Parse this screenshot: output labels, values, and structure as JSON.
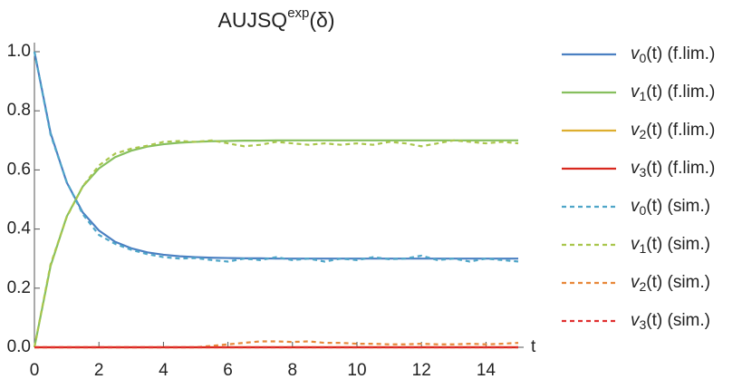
{
  "chart_data": {
    "type": "line",
    "title": [
      "AUJSQ",
      "exp",
      "(δ)"
    ],
    "x_label": "t",
    "x": [
      0,
      0.5,
      1,
      1.5,
      2,
      2.5,
      3,
      3.5,
      4,
      4.5,
      5,
      5.5,
      6,
      6.5,
      7,
      7.5,
      8,
      8.5,
      9,
      9.5,
      10,
      10.5,
      11,
      11.5,
      12,
      12.5,
      13,
      13.5,
      14,
      14.5,
      15
    ],
    "xlim": [
      0,
      15
    ],
    "xticks": [
      0,
      2,
      4,
      6,
      8,
      10,
      12,
      14
    ],
    "ylim": [
      0,
      1
    ],
    "yticks": [
      {
        "value": 0,
        "label": "0.0"
      },
      {
        "value": 0.2,
        "label": "0.2"
      },
      {
        "value": 0.4,
        "label": "0.4"
      },
      {
        "value": 0.6,
        "label": "0.6"
      },
      {
        "value": 0.8,
        "label": "0.8"
      },
      {
        "value": 1,
        "label": "1.0"
      }
    ],
    "legend": "right",
    "series": [
      {
        "name": "v0(t) (f.lim.)",
        "color": "#4b80c2",
        "dashed": false,
        "values": [
          1.0,
          0.725,
          0.558,
          0.456,
          0.395,
          0.357,
          0.335,
          0.321,
          0.313,
          0.308,
          0.305,
          0.303,
          0.302,
          0.301,
          0.301,
          0.3,
          0.3,
          0.3,
          0.3,
          0.3,
          0.3,
          0.3,
          0.3,
          0.3,
          0.3,
          0.3,
          0.3,
          0.3,
          0.3,
          0.3,
          0.3
        ]
      },
      {
        "name": "v1(t) (f.lim.)",
        "color": "#86bf5e",
        "dashed": false,
        "values": [
          0,
          0.275,
          0.442,
          0.544,
          0.605,
          0.643,
          0.665,
          0.679,
          0.687,
          0.692,
          0.695,
          0.697,
          0.698,
          0.699,
          0.699,
          0.7,
          0.7,
          0.7,
          0.7,
          0.7,
          0.7,
          0.7,
          0.7,
          0.7,
          0.7,
          0.7,
          0.7,
          0.7,
          0.7,
          0.7,
          0.7
        ]
      },
      {
        "name": "v2(t) (f.lim.)",
        "color": "#ddae2f",
        "dashed": false,
        "values": [
          0,
          0,
          0,
          0,
          0,
          0,
          0,
          0,
          0,
          0,
          0,
          0,
          0,
          0,
          0,
          0,
          0,
          0,
          0,
          0,
          0,
          0,
          0,
          0,
          0,
          0,
          0,
          0,
          0,
          0,
          0
        ]
      },
      {
        "name": "v3(t) (f.lim.)",
        "color": "#d8281e",
        "dashed": false,
        "values": [
          0,
          0,
          0,
          0,
          0,
          0,
          0,
          0,
          0,
          0,
          0,
          0,
          0,
          0,
          0,
          0,
          0,
          0,
          0,
          0,
          0,
          0,
          0,
          0,
          0,
          0,
          0,
          0,
          0,
          0,
          0
        ]
      },
      {
        "name": "v0(t) (sim.)",
        "color": "#4fa6c8",
        "dashed": true,
        "values": [
          1.0,
          0.72,
          0.56,
          0.45,
          0.38,
          0.35,
          0.33,
          0.315,
          0.305,
          0.3,
          0.302,
          0.295,
          0.29,
          0.3,
          0.295,
          0.305,
          0.295,
          0.3,
          0.29,
          0.3,
          0.295,
          0.305,
          0.298,
          0.3,
          0.31,
          0.295,
          0.3,
          0.29,
          0.3,
          0.295,
          0.29
        ]
      },
      {
        "name": "v1(t) (sim.)",
        "color": "#a9c64c",
        "dashed": true,
        "values": [
          0,
          0.28,
          0.44,
          0.545,
          0.615,
          0.655,
          0.672,
          0.682,
          0.695,
          0.698,
          0.695,
          0.7,
          0.69,
          0.68,
          0.685,
          0.695,
          0.69,
          0.685,
          0.69,
          0.685,
          0.69,
          0.685,
          0.695,
          0.69,
          0.68,
          0.69,
          0.7,
          0.695,
          0.69,
          0.695,
          0.69
        ]
      },
      {
        "name": "v2(t) (sim.)",
        "color": "#e8883a",
        "dashed": true,
        "values": [
          0,
          0,
          0,
          0,
          0,
          0,
          0,
          0,
          0,
          0,
          0,
          0.005,
          0.01,
          0.015,
          0.02,
          0.02,
          0.018,
          0.02,
          0.015,
          0.015,
          0.012,
          0.012,
          0.01,
          0.01,
          0.012,
          0.01,
          0.01,
          0.012,
          0.01,
          0.012,
          0.015
        ]
      },
      {
        "name": "v3(t) (sim.)",
        "color": "#e03030",
        "dashed": true,
        "values": [
          0,
          0,
          0,
          0,
          0,
          0,
          0,
          0,
          0,
          0,
          0,
          0,
          0,
          0,
          0,
          0,
          0,
          0,
          0,
          0,
          0,
          0,
          0,
          0,
          0,
          0,
          0,
          0,
          0,
          0,
          0
        ]
      }
    ]
  }
}
